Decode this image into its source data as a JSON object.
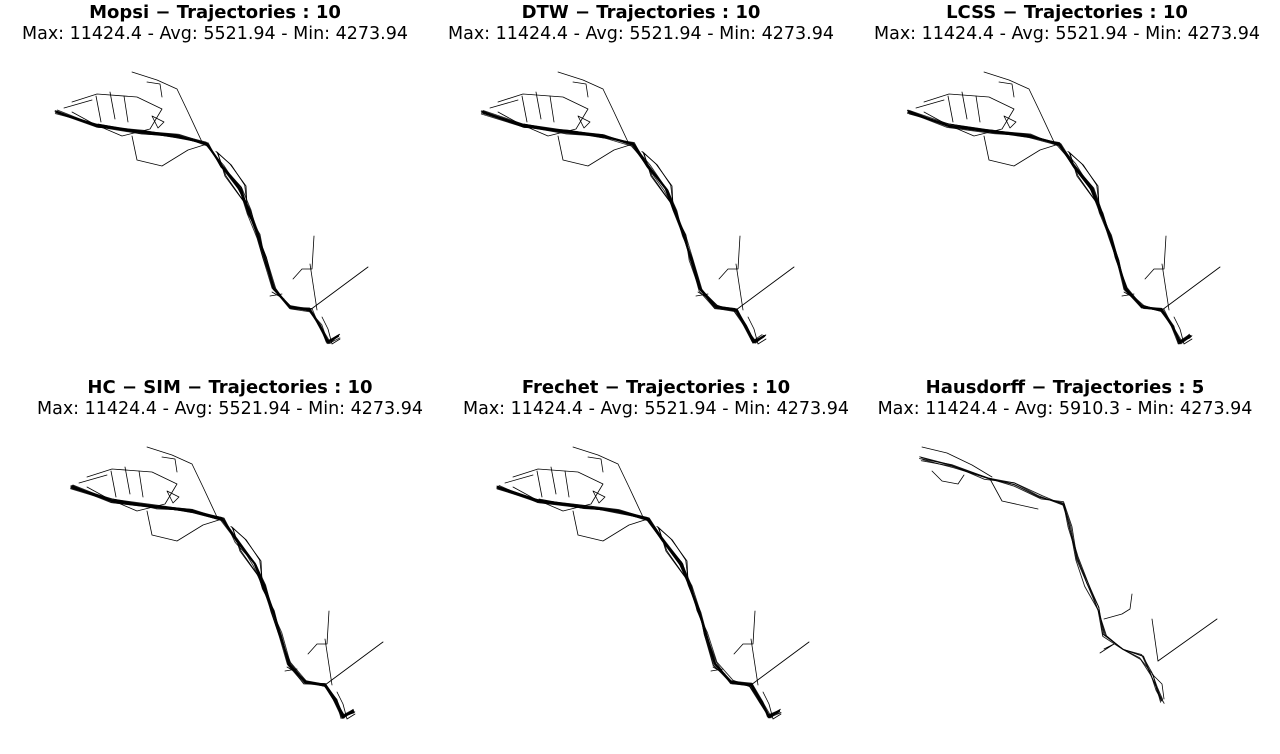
{
  "chart_data": [
    {
      "type": "line",
      "method": "Mopsi",
      "trajectories": 10,
      "title": "Mopsi − Trajectories : 10",
      "stats": "Max: 11424.4 - Avg: 5521.94 - Min: 4273.94",
      "max": 11424.4,
      "avg": 5521.94,
      "min": 4273.94,
      "axes": "off",
      "grid": false
    },
    {
      "type": "line",
      "method": "DTW",
      "trajectories": 10,
      "title": "DTW − Trajectories : 10",
      "stats": "Max: 11424.4 - Avg: 5521.94 - Min: 4273.94",
      "max": 11424.4,
      "avg": 5521.94,
      "min": 4273.94,
      "axes": "off",
      "grid": false
    },
    {
      "type": "line",
      "method": "LCSS",
      "trajectories": 10,
      "title": "LCSS − Trajectories : 10",
      "stats": "Max: 11424.4 - Avg: 5521.94 - Min: 4273.94",
      "max": 11424.4,
      "avg": 5521.94,
      "min": 4273.94,
      "axes": "off",
      "grid": false
    },
    {
      "type": "line",
      "method": "HC − SIM",
      "trajectories": 10,
      "title": "HC − SIM − Trajectories : 10",
      "stats": "Max: 11424.4 - Avg: 5521.94 - Min: 4273.94",
      "max": 11424.4,
      "avg": 5521.94,
      "min": 4273.94,
      "axes": "off",
      "grid": false
    },
    {
      "type": "line",
      "method": "Frechet",
      "trajectories": 10,
      "title": "Frechet − Trajectories : 10",
      "stats": "Max: 11424.4 - Avg: 5521.94 - Min: 4273.94",
      "max": 11424.4,
      "avg": 5521.94,
      "min": 4273.94,
      "axes": "off",
      "grid": false
    },
    {
      "type": "line",
      "method": "Hausdorff",
      "trajectories": 5,
      "title": "Hausdorff − Trajectories : 5",
      "stats": "Max: 11424.4 - Avg: 5910.3 - Min: 4273.94",
      "max": 11424.4,
      "avg": 5910.3,
      "min": 4273.94,
      "axes": "off",
      "grid": false
    }
  ]
}
